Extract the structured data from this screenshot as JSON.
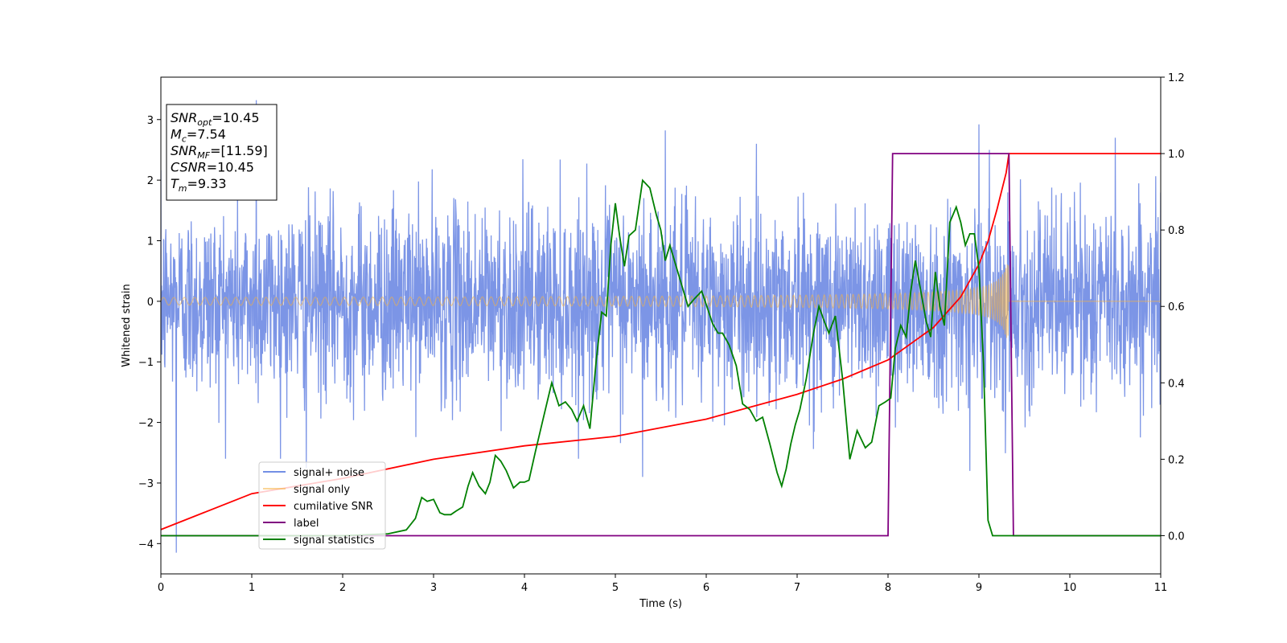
{
  "chart_data": {
    "type": "line",
    "title": "",
    "xlabel": "Time (s)",
    "ylabel": "Whitened strain",
    "ylabel_right": "",
    "xlim": [
      0,
      11
    ],
    "ylim": [
      -4.5,
      3.7
    ],
    "ylim_right": [
      -0.1,
      1.2
    ],
    "x_ticks": [
      0,
      1,
      2,
      3,
      4,
      5,
      6,
      7,
      8,
      9,
      10,
      11
    ],
    "y_ticks": [
      -4,
      -3,
      -2,
      -1,
      0,
      1,
      2,
      3
    ],
    "y_ticks_right": [
      0.0,
      0.2,
      0.4,
      0.6,
      0.8,
      1.0,
      1.2
    ],
    "grid": false,
    "legend_placement": "lower-left",
    "annotation": {
      "lines": [
        {
          "main": "SNR",
          "sub": "opt",
          "rest": "=10.45"
        },
        {
          "main": "M",
          "sub": "c",
          "rest": "=7.54"
        },
        {
          "main": "SNR",
          "sub": "MF",
          "rest": "=[11.59]"
        },
        {
          "main": "CSNR",
          "sub": "",
          "rest": "=10.45"
        },
        {
          "main": "T",
          "sub": "m",
          "rest": "=9.33"
        }
      ]
    },
    "series": [
      {
        "name": "signal+ noise",
        "axis": "left",
        "color": "#5b7be0",
        "style": "noise",
        "sigma": 0.78,
        "extremes": [
          {
            "x": 0.17,
            "y": -4.15
          },
          {
            "x": 1.05,
            "y": 3.32
          },
          {
            "x": 5.55,
            "y": 2.82
          },
          {
            "x": 9.0,
            "y": 2.92
          },
          {
            "x": 10.5,
            "y": 2.7
          },
          {
            "x": 1.6,
            "y": -2.75
          },
          {
            "x": 5.3,
            "y": -2.9
          },
          {
            "x": 8.9,
            "y": -2.8
          }
        ]
      },
      {
        "name": "signal only",
        "axis": "left",
        "color": "#f5b342",
        "style": "chirp",
        "t_merge": 9.33,
        "amp_start": 0.03,
        "amp_end": 0.62
      },
      {
        "name": "cumilative SNR",
        "axis": "right",
        "color": "#ff0000",
        "x": [
          0,
          1,
          2,
          3,
          4,
          5,
          6,
          7,
          7.5,
          8,
          8.5,
          8.8,
          9.0,
          9.1,
          9.2,
          9.3,
          9.33,
          11
        ],
        "y": [
          0.016,
          0.11,
          0.15,
          0.2,
          0.235,
          0.26,
          0.305,
          0.37,
          0.41,
          0.46,
          0.545,
          0.625,
          0.71,
          0.77,
          0.855,
          0.95,
          1.0,
          1.0
        ]
      },
      {
        "name": "label",
        "axis": "right",
        "color": "#800080",
        "x": [
          0,
          8.0,
          8.05,
          9.33,
          9.38,
          11
        ],
        "y": [
          0,
          0,
          1,
          1,
          0,
          0
        ]
      },
      {
        "name": "signal statistics",
        "axis": "right",
        "color": "#008000",
        "x": [
          0,
          1,
          2,
          2.5,
          2.7,
          2.8,
          2.87,
          2.93,
          3.0,
          3.07,
          3.12,
          3.19,
          3.25,
          3.32,
          3.38,
          3.43,
          3.5,
          3.57,
          3.62,
          3.68,
          3.74,
          3.8,
          3.88,
          3.95,
          4.0,
          4.05,
          4.12,
          4.2,
          4.3,
          4.38,
          4.45,
          4.52,
          4.58,
          4.65,
          4.72,
          4.79,
          4.85,
          4.9,
          4.95,
          5.0,
          5.05,
          5.1,
          5.15,
          5.22,
          5.3,
          5.38,
          5.45,
          5.5,
          5.55,
          5.6,
          5.7,
          5.8,
          5.87,
          5.95,
          6.0,
          6.07,
          6.13,
          6.18,
          6.25,
          6.33,
          6.4,
          6.48,
          6.55,
          6.62,
          6.7,
          6.78,
          6.83,
          6.88,
          6.93,
          6.98,
          7.03,
          7.1,
          7.18,
          7.24,
          7.3,
          7.35,
          7.42,
          7.5,
          7.58,
          7.66,
          7.75,
          7.82,
          7.9,
          7.97,
          8.03,
          8.08,
          8.14,
          8.2,
          8.25,
          8.3,
          8.35,
          8.42,
          8.47,
          8.52,
          8.57,
          8.62,
          8.68,
          8.75,
          8.8,
          8.85,
          8.9,
          8.95,
          9.0,
          9.05,
          9.1,
          9.15,
          9.22,
          9.27,
          9.32,
          9.37,
          9.42,
          11
        ],
        "y": [
          0,
          0,
          0,
          0.005,
          0.015,
          0.045,
          0.1,
          0.09,
          0.095,
          0.06,
          0.055,
          0.055,
          0.065,
          0.075,
          0.13,
          0.165,
          0.13,
          0.11,
          0.14,
          0.21,
          0.195,
          0.17,
          0.125,
          0.14,
          0.14,
          0.145,
          0.22,
          0.3,
          0.4,
          0.34,
          0.35,
          0.33,
          0.3,
          0.34,
          0.28,
          0.46,
          0.585,
          0.575,
          0.76,
          0.87,
          0.78,
          0.705,
          0.785,
          0.8,
          0.93,
          0.91,
          0.84,
          0.8,
          0.72,
          0.76,
          0.68,
          0.6,
          0.62,
          0.64,
          0.605,
          0.555,
          0.53,
          0.53,
          0.5,
          0.445,
          0.345,
          0.33,
          0.3,
          0.31,
          0.24,
          0.165,
          0.13,
          0.175,
          0.24,
          0.29,
          0.33,
          0.41,
          0.53,
          0.6,
          0.56,
          0.53,
          0.575,
          0.41,
          0.2,
          0.275,
          0.23,
          0.245,
          0.34,
          0.35,
          0.36,
          0.49,
          0.55,
          0.52,
          0.64,
          0.72,
          0.655,
          0.56,
          0.52,
          0.69,
          0.6,
          0.55,
          0.82,
          0.86,
          0.82,
          0.76,
          0.79,
          0.79,
          0.7,
          0.45,
          0.04,
          0.0,
          0.0,
          0.0,
          0.0,
          0.0,
          0.0,
          0.0
        ]
      }
    ]
  }
}
